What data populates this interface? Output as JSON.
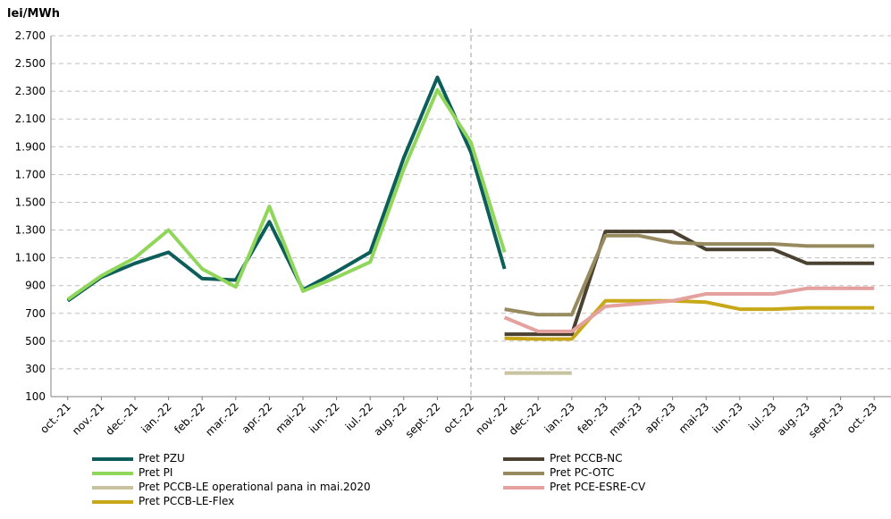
{
  "chart_data": {
    "type": "line",
    "ylabel": "lei/MWh",
    "ylim": [
      100,
      2700
    ],
    "yticks": [
      "2.700",
      "2.500",
      "2.300",
      "2.100",
      "1.900",
      "1.700",
      "1.500",
      "1.300",
      "1.100",
      "900",
      "700",
      "500",
      "300",
      "100"
    ],
    "ytick_values": [
      2700,
      2500,
      2300,
      2100,
      1900,
      1700,
      1500,
      1300,
      1100,
      900,
      700,
      500,
      300,
      100
    ],
    "categories": [
      "oct.-21",
      "nov.-21",
      "dec.-21",
      "ian.-22",
      "feb.-22",
      "mar.-22",
      "apr.-22",
      "mai-22",
      "iun.-22",
      "iul.-22",
      "aug.-22",
      "sept.-22",
      "oct.-22",
      "nov.-22",
      "dec.-22",
      "ian.-23",
      "feb.-23",
      "mar.-23",
      "apr.-23",
      "mai-23",
      "iun.-23",
      "iul.-23",
      "aug.-23",
      "sept.-23",
      "oct.-23"
    ],
    "divider_after": "oct.-22",
    "grid": true,
    "legend_position": "bottom",
    "series": [
      {
        "name": "Pret PZU",
        "color": "#0d5e5a",
        "values": [
          790,
          960,
          1060,
          1140,
          950,
          940,
          1360,
          870,
          1000,
          1140,
          1820,
          2400,
          1860,
          1020,
          null,
          null,
          null,
          null,
          null,
          null,
          null,
          null,
          null,
          null,
          null
        ]
      },
      {
        "name": "Pret PI",
        "color": "#8fd65a",
        "values": [
          800,
          970,
          1100,
          1300,
          1020,
          890,
          1470,
          860,
          960,
          1070,
          1740,
          2310,
          1930,
          1140,
          null,
          null,
          null,
          null,
          null,
          null,
          null,
          null,
          null,
          null,
          null
        ]
      },
      {
        "name": "Pret PCCB-LE operational pana in mai.2020",
        "color": "#c9c2a0",
        "values": [
          null,
          null,
          null,
          null,
          null,
          null,
          null,
          null,
          null,
          null,
          null,
          null,
          null,
          270,
          270,
          270,
          null,
          null,
          null,
          null,
          null,
          null,
          null,
          null,
          null
        ]
      },
      {
        "name": "Pret PCCB-LE-Flex",
        "color": "#c8a818",
        "values": [
          null,
          null,
          null,
          null,
          null,
          null,
          null,
          null,
          null,
          null,
          null,
          null,
          null,
          520,
          515,
          515,
          790,
          790,
          790,
          780,
          730,
          730,
          740,
          740,
          740
        ]
      },
      {
        "name": "Pret PCCB-NC",
        "color": "#4a4130",
        "values": [
          null,
          null,
          null,
          null,
          null,
          null,
          null,
          null,
          null,
          null,
          null,
          null,
          null,
          550,
          550,
          550,
          1290,
          1290,
          1290,
          1160,
          1160,
          1160,
          1060,
          1060,
          1060
        ]
      },
      {
        "name": "Pret PC-OTC",
        "color": "#968a5e",
        "values": [
          null,
          null,
          null,
          null,
          null,
          null,
          null,
          null,
          null,
          null,
          null,
          null,
          null,
          730,
          690,
          690,
          1260,
          1260,
          1210,
          1200,
          1200,
          1200,
          1185,
          1185,
          1185
        ]
      },
      {
        "name": "Pret PCE-ESRE-CV",
        "color": "#e4a19e",
        "values": [
          null,
          null,
          null,
          null,
          null,
          null,
          null,
          null,
          null,
          null,
          null,
          null,
          null,
          670,
          570,
          570,
          750,
          770,
          790,
          840,
          840,
          840,
          880,
          880,
          880
        ]
      }
    ],
    "legend_order": [
      "Pret PZU",
      "Pret PCCB-NC",
      "Pret PI",
      "Pret PC-OTC",
      "Pret PCCB-LE operational pana in mai.2020",
      "Pret PCE-ESRE-CV",
      "Pret PCCB-LE-Flex"
    ]
  }
}
